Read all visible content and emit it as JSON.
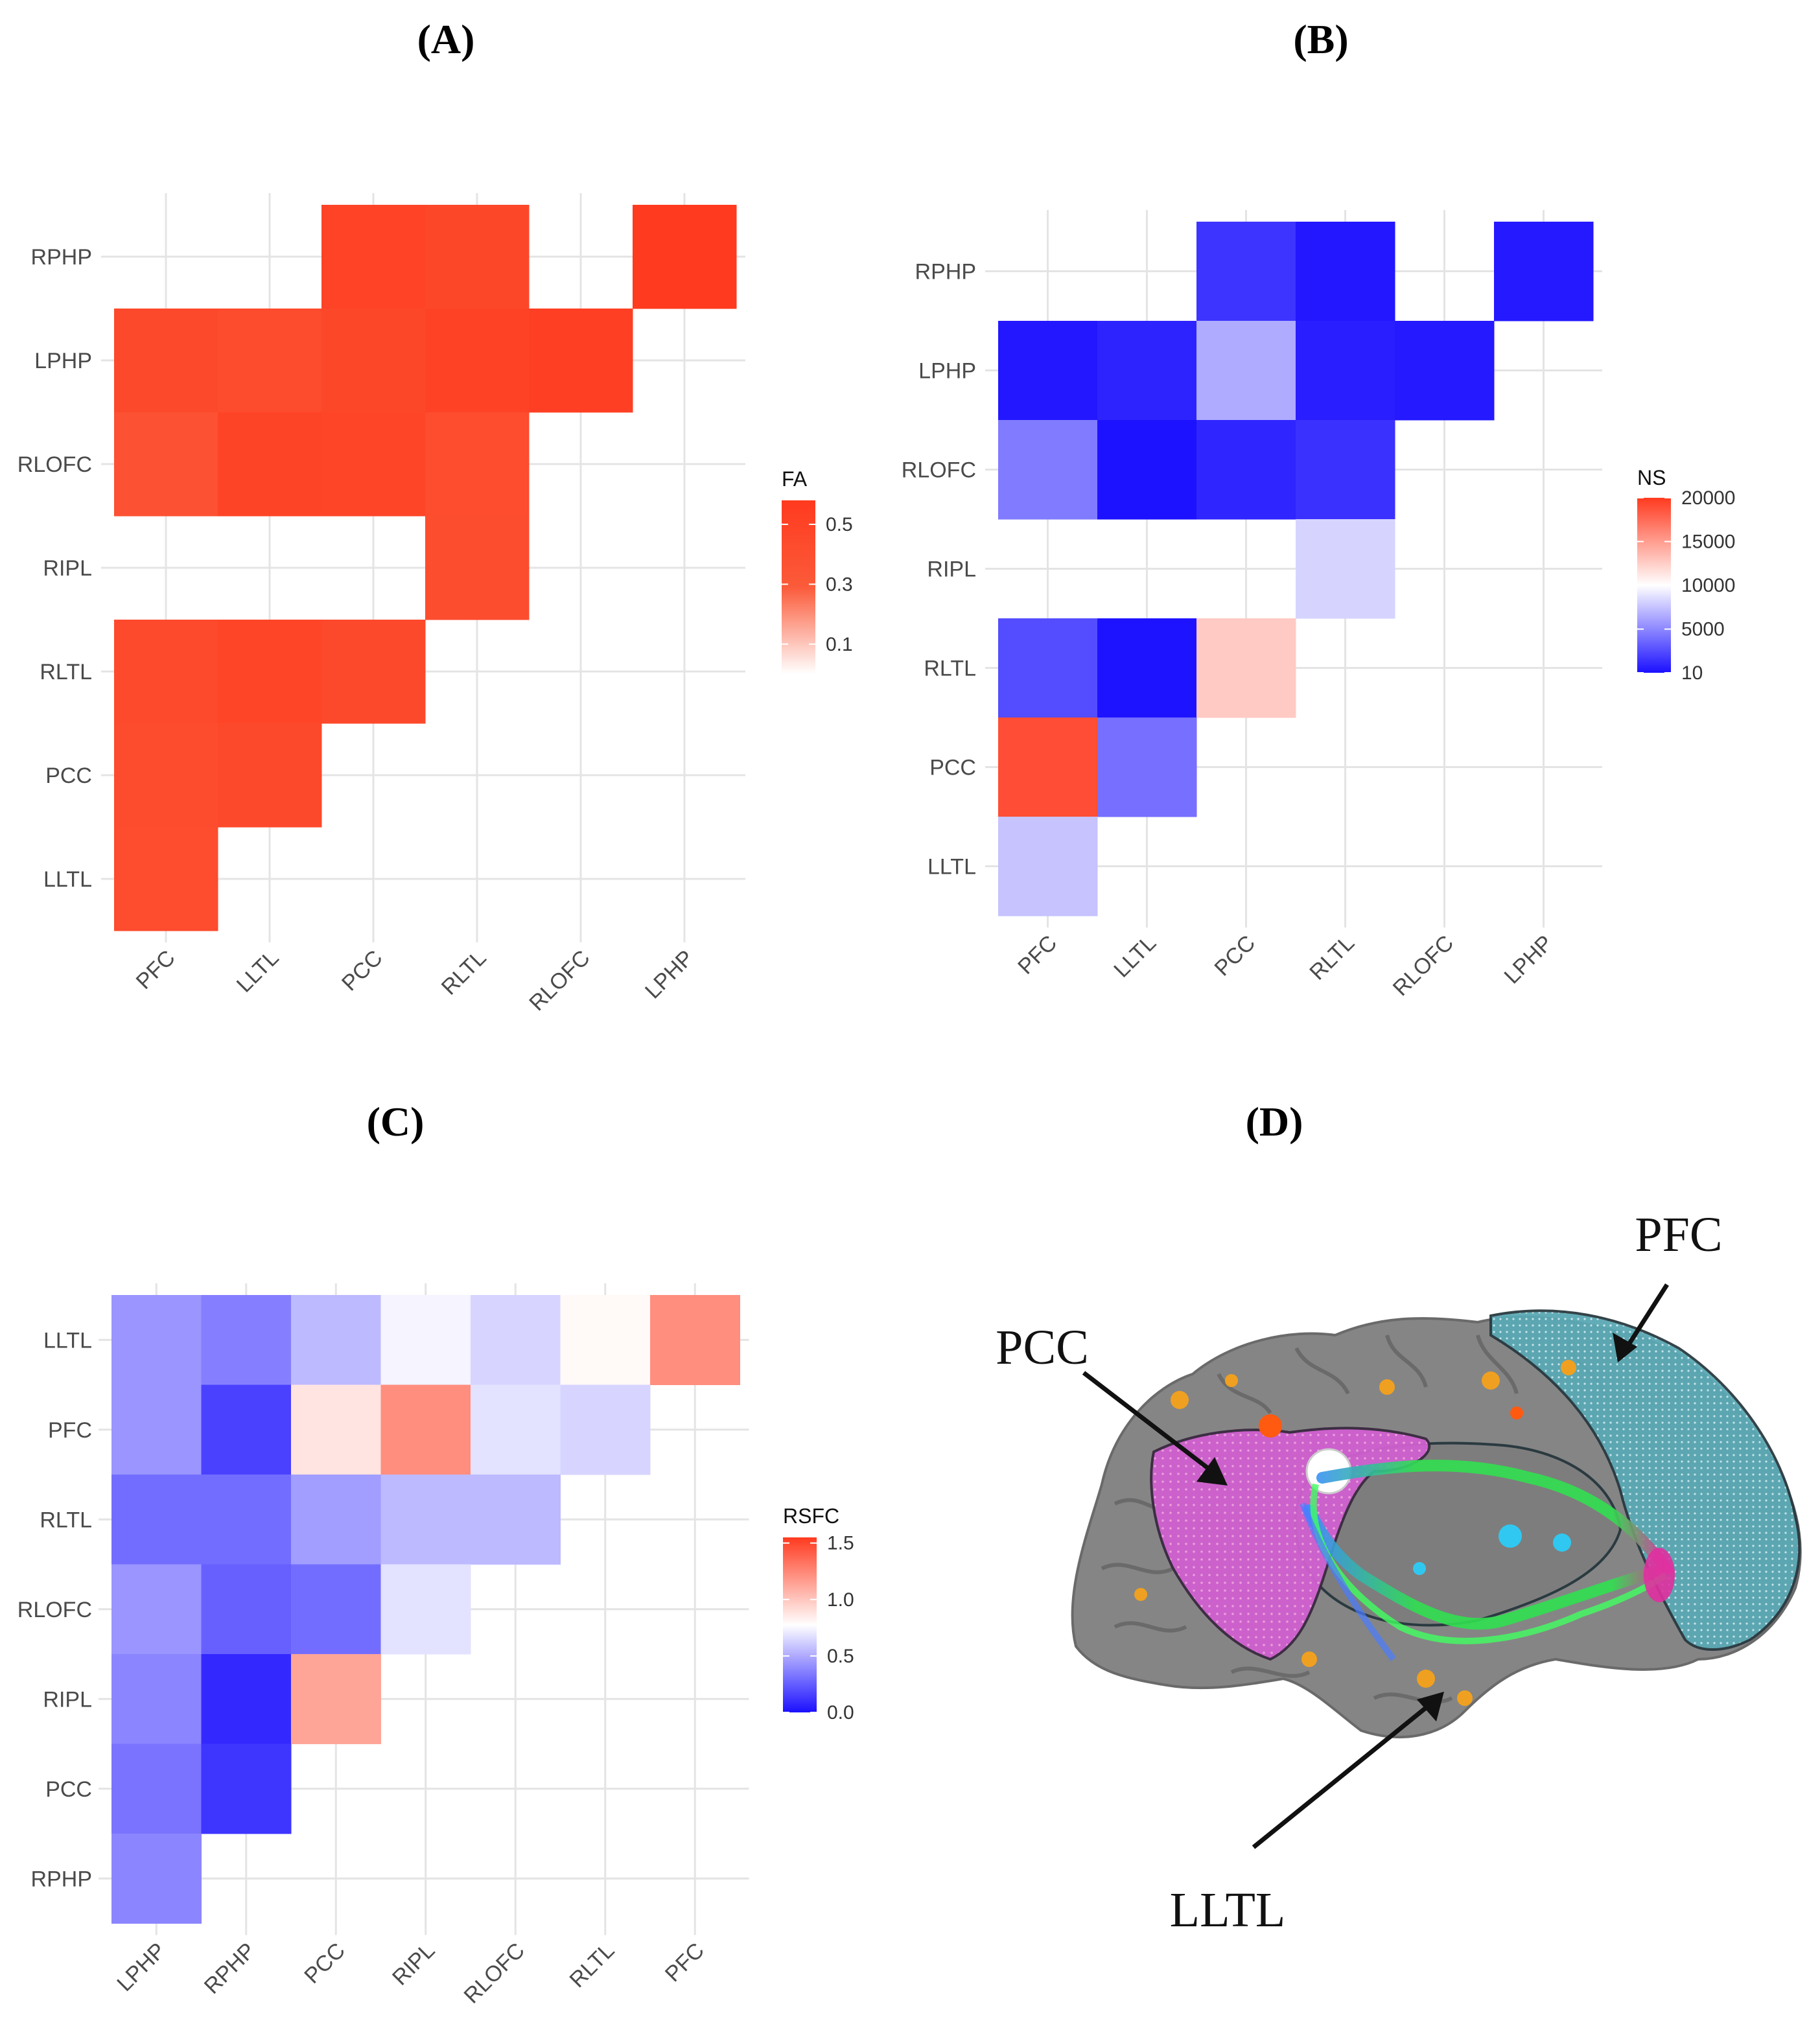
{
  "chart_data": [
    {
      "panel": "(A)",
      "type": "heatmap",
      "legend_title": "FA",
      "legend_ticks": [
        "0.5",
        "0.3",
        "0.1"
      ],
      "legend_tick_values": [
        0.5,
        0.3,
        0.1
      ],
      "value_range": [
        0,
        0.58
      ],
      "color_scale": [
        "#ffffff",
        "#fb5b3a",
        "#ff3a1f"
      ],
      "x_categories": [
        "PFC",
        "LLTL",
        "PCC",
        "RLTL",
        "RLOFC",
        "LPHP"
      ],
      "y_categories": [
        "RPHP",
        "LPHP",
        "RLOFC",
        "RIPL",
        "RLTL",
        "PCC",
        "LLTL"
      ],
      "cells": [
        {
          "row": "RPHP",
          "col": "PCC",
          "value": 0.5
        },
        {
          "row": "RPHP",
          "col": "RLTL",
          "value": 0.47
        },
        {
          "row": "RPHP",
          "col": "LPHP",
          "value": 0.58
        },
        {
          "row": "LPHP",
          "col": "PFC",
          "value": 0.45
        },
        {
          "row": "LPHP",
          "col": "LLTL",
          "value": 0.43
        },
        {
          "row": "LPHP",
          "col": "PCC",
          "value": 0.47
        },
        {
          "row": "LPHP",
          "col": "RLTL",
          "value": 0.51
        },
        {
          "row": "LPHP",
          "col": "RLOFC",
          "value": 0.54
        },
        {
          "row": "RLOFC",
          "col": "PFC",
          "value": 0.38
        },
        {
          "row": "RLOFC",
          "col": "LLTL",
          "value": 0.49
        },
        {
          "row": "RLOFC",
          "col": "PCC",
          "value": 0.48
        },
        {
          "row": "RLOFC",
          "col": "RLTL",
          "value": 0.42
        },
        {
          "row": "RIPL",
          "col": "RLTL",
          "value": 0.41
        },
        {
          "row": "RLTL",
          "col": "PFC",
          "value": 0.44
        },
        {
          "row": "RLTL",
          "col": "LLTL",
          "value": 0.48
        },
        {
          "row": "RLTL",
          "col": "PCC",
          "value": 0.45
        },
        {
          "row": "PCC",
          "col": "PFC",
          "value": 0.43
        },
        {
          "row": "PCC",
          "col": "LLTL",
          "value": 0.45
        },
        {
          "row": "LLTL",
          "col": "PFC",
          "value": 0.42
        }
      ]
    },
    {
      "panel": "(B)",
      "type": "heatmap",
      "legend_title": "NS",
      "legend_ticks": [
        "20000",
        "15000",
        "10000",
        "5000",
        "10"
      ],
      "legend_tick_values": [
        20000,
        15000,
        10000,
        5000,
        10
      ],
      "value_range": [
        10,
        20000
      ],
      "color_scale": [
        "#1b10ff",
        "#ffffff",
        "#ff3a1f"
      ],
      "x_categories": [
        "PFC",
        "LLTL",
        "PCC",
        "RLTL",
        "RLOFC",
        "LPHP"
      ],
      "y_categories": [
        "RPHP",
        "LPHP",
        "RLOFC",
        "RIPL",
        "RLTL",
        "PCC",
        "LLTL"
      ],
      "cells": [
        {
          "row": "RPHP",
          "col": "PCC",
          "value": 1500
        },
        {
          "row": "RPHP",
          "col": "RLTL",
          "value": 300
        },
        {
          "row": "RPHP",
          "col": "LPHP",
          "value": 400
        },
        {
          "row": "LPHP",
          "col": "PFC",
          "value": 300
        },
        {
          "row": "LPHP",
          "col": "LLTL",
          "value": 800
        },
        {
          "row": "LPHP",
          "col": "PCC",
          "value": 6500
        },
        {
          "row": "LPHP",
          "col": "RLTL",
          "value": 600
        },
        {
          "row": "LPHP",
          "col": "RLOFC",
          "value": 400
        },
        {
          "row": "RLOFC",
          "col": "PFC",
          "value": 4500
        },
        {
          "row": "RLOFC",
          "col": "LLTL",
          "value": 100
        },
        {
          "row": "RLOFC",
          "col": "PCC",
          "value": 900
        },
        {
          "row": "RLOFC",
          "col": "RLTL",
          "value": 1400
        },
        {
          "row": "RIPL",
          "col": "RLTL",
          "value": 8200
        },
        {
          "row": "RLTL",
          "col": "PFC",
          "value": 2500
        },
        {
          "row": "RLTL",
          "col": "LLTL",
          "value": 150
        },
        {
          "row": "RLTL",
          "col": "PCC",
          "value": 12700
        },
        {
          "row": "PCC",
          "col": "PFC",
          "value": 19000
        },
        {
          "row": "PCC",
          "col": "LLTL",
          "value": 4000
        },
        {
          "row": "LLTL",
          "col": "PFC",
          "value": 7500
        }
      ]
    },
    {
      "panel": "(C)",
      "type": "heatmap",
      "legend_title": "RSFC",
      "legend_ticks": [
        "1.5",
        "1.0",
        "0.5",
        "0.0"
      ],
      "legend_tick_values": [
        1.5,
        1.0,
        0.5,
        0.0
      ],
      "value_range": [
        0,
        1.55
      ],
      "color_scale": [
        "#1b10ff",
        "#ffffff",
        "#ff3a1f"
      ],
      "x_categories": [
        "LPHP",
        "RPHP",
        "PCC",
        "RIPL",
        "RLOFC",
        "RLTL",
        "PFC"
      ],
      "y_categories": [
        "LLTL",
        "PFC",
        "RLTL",
        "RLOFC",
        "RIPL",
        "PCC",
        "RPHP"
      ],
      "cells": [
        {
          "row": "LLTL",
          "col": "LPHP",
          "value": 0.43
        },
        {
          "row": "LLTL",
          "col": "RPHP",
          "value": 0.36
        },
        {
          "row": "LLTL",
          "col": "PCC",
          "value": 0.55
        },
        {
          "row": "LLTL",
          "col": "RIPL",
          "value": 0.74
        },
        {
          "row": "LLTL",
          "col": "RLOFC",
          "value": 0.64
        },
        {
          "row": "LLTL",
          "col": "RLTL",
          "value": 0.8
        },
        {
          "row": "LLTL",
          "col": "PFC",
          "value": 1.22
        },
        {
          "row": "PFC",
          "col": "LPHP",
          "value": 0.43
        },
        {
          "row": "PFC",
          "col": "RPHP",
          "value": 0.16
        },
        {
          "row": "PFC",
          "col": "PCC",
          "value": 0.88
        },
        {
          "row": "PFC",
          "col": "RIPL",
          "value": 1.22
        },
        {
          "row": "PFC",
          "col": "RLOFC",
          "value": 0.68
        },
        {
          "row": "PFC",
          "col": "RLTL",
          "value": 0.64
        },
        {
          "row": "RLTL",
          "col": "LPHP",
          "value": 0.3
        },
        {
          "row": "RLTL",
          "col": "RPHP",
          "value": 0.3
        },
        {
          "row": "RLTL",
          "col": "PCC",
          "value": 0.46
        },
        {
          "row": "RLTL",
          "col": "RIPL",
          "value": 0.55
        },
        {
          "row": "RLTL",
          "col": "RLOFC",
          "value": 0.55
        },
        {
          "row": "RLOFC",
          "col": "LPHP",
          "value": 0.43
        },
        {
          "row": "RLOFC",
          "col": "RPHP",
          "value": 0.26
        },
        {
          "row": "RLOFC",
          "col": "PCC",
          "value": 0.3
        },
        {
          "row": "RLOFC",
          "col": "RIPL",
          "value": 0.68
        },
        {
          "row": "RIPL",
          "col": "LPHP",
          "value": 0.38
        },
        {
          "row": "RIPL",
          "col": "RPHP",
          "value": 0.08
        },
        {
          "row": "RIPL",
          "col": "PCC",
          "value": 1.13
        },
        {
          "row": "PCC",
          "col": "LPHP",
          "value": 0.32
        },
        {
          "row": "PCC",
          "col": "RPHP",
          "value": 0.12
        },
        {
          "row": "RPHP",
          "col": "LPHP",
          "value": 0.38
        }
      ]
    }
  ],
  "panel_labels": {
    "a": "(A)",
    "b": "(B)",
    "c": "(C)",
    "d": "(D)"
  },
  "brain_figure": {
    "labels": {
      "pfc": "PFC",
      "pcc": "PCC",
      "lltl": "LLTL"
    },
    "colors": {
      "cortex": "#858585",
      "pfc_region": "#5aa8b4",
      "pcc_region": "#d060d0",
      "tract": "#30e050",
      "activation": "#f0a020"
    }
  }
}
